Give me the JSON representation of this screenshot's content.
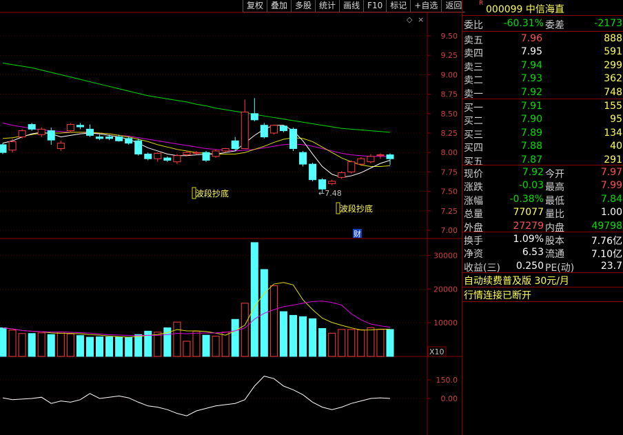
{
  "toolbar": [
    "复权",
    "叠加",
    "多股",
    "统计",
    "画线",
    "F10",
    "标记",
    "+自选",
    "返回"
  ],
  "stock": {
    "badge": "R",
    "code_name": "000099 中信海直"
  },
  "ratio": {
    "label": "委比",
    "value": "-60.31%",
    "diff_label": "委差",
    "diff_value": "-2173"
  },
  "asks": [
    {
      "label": "卖五",
      "price": "7.96",
      "vol": "888"
    },
    {
      "label": "卖四",
      "price": "7.95",
      "vol": "591"
    },
    {
      "label": "卖三",
      "price": "7.94",
      "vol": "299"
    },
    {
      "label": "卖二",
      "price": "7.93",
      "vol": "362"
    },
    {
      "label": "卖一",
      "price": "7.92",
      "vol": "748"
    }
  ],
  "bids": [
    {
      "label": "买一",
      "price": "7.91",
      "vol": "155"
    },
    {
      "label": "买二",
      "price": "7.90",
      "vol": "95"
    },
    {
      "label": "买三",
      "price": "7.89",
      "vol": "134"
    },
    {
      "label": "买四",
      "price": "7.88",
      "vol": "40"
    },
    {
      "label": "买五",
      "price": "7.87",
      "vol": "291"
    }
  ],
  "quote": [
    {
      "l1": "现价",
      "v1": "7.92",
      "l2": "今开",
      "v2": "7.97",
      "c1": "green",
      "c2": "red"
    },
    {
      "l1": "涨跌",
      "v1": "-0.03",
      "l2": "最高",
      "v2": "7.99",
      "c1": "green",
      "c2": "red"
    },
    {
      "l1": "涨幅",
      "v1": "-0.38%",
      "l2": "最低",
      "v2": "7.84",
      "c1": "green",
      "c2": "green"
    },
    {
      "l1": "总量",
      "v1": "77077",
      "l2": "量比",
      "v2": "1.00",
      "c1": "yel",
      "c2": "white"
    },
    {
      "l1": "外盘",
      "v1": "27279",
      "l2": "内盘",
      "v2": "49798",
      "c1": "red",
      "c2": "green"
    }
  ],
  "stats": [
    {
      "l1": "换手",
      "v1": "1.09%",
      "l2": "股本",
      "v2": "7.76亿"
    },
    {
      "l1": "净资",
      "v1": "6.53",
      "l2": "流通",
      "v2": "7.10亿"
    },
    {
      "l1": "收益(三)",
      "v1": "0.250",
      "l2": "PE(动)",
      "v2": "23.7"
    }
  ],
  "promo": "自动续费普及版 30元/月",
  "status": "行情连接已断开",
  "price_axis": [
    "9.50",
    "9.25",
    "9.00",
    "8.75",
    "8.50",
    "8.25",
    "8.00",
    "7.75",
    "7.50",
    "7.25",
    "7.00"
  ],
  "volume_axis": [
    "30000",
    "20000",
    "10000"
  ],
  "volume_unit": "X10",
  "osc_axis": [
    "150.0",
    "0.00"
  ],
  "annotations": {
    "signal1": "波段抄底",
    "signal2": "波段抄底",
    "low_label": "←7.48",
    "fin_badge": "财"
  },
  "chart_data": [
    {
      "type": "candlestick",
      "ylim": [
        7.0,
        9.5
      ],
      "candles": [
        {
          "o": 8.1,
          "c": 8.0,
          "h": 8.12,
          "l": 7.98
        },
        {
          "o": 8.03,
          "c": 8.14,
          "h": 8.18,
          "l": 8.0
        },
        {
          "o": 8.2,
          "c": 8.28,
          "h": 8.3,
          "l": 8.18
        },
        {
          "o": 8.36,
          "c": 8.3,
          "h": 8.38,
          "l": 8.28
        },
        {
          "o": 8.23,
          "c": 8.3,
          "h": 8.32,
          "l": 8.2
        },
        {
          "o": 8.28,
          "c": 8.16,
          "h": 8.32,
          "l": 8.1
        },
        {
          "o": 8.05,
          "c": 8.12,
          "h": 8.15,
          "l": 8.02
        },
        {
          "o": 8.28,
          "c": 8.36,
          "h": 8.38,
          "l": 8.26
        },
        {
          "o": 8.35,
          "c": 8.33,
          "h": 8.38,
          "l": 8.3
        },
        {
          "o": 8.3,
          "c": 8.22,
          "h": 8.36,
          "l": 8.2
        },
        {
          "o": 8.2,
          "c": 8.18,
          "h": 8.23,
          "l": 8.16
        },
        {
          "o": 8.2,
          "c": 8.18,
          "h": 8.23,
          "l": 8.16
        },
        {
          "o": 8.2,
          "c": 8.15,
          "h": 8.23,
          "l": 8.14
        },
        {
          "o": 8.18,
          "c": 8.12,
          "h": 8.2,
          "l": 8.1
        },
        {
          "o": 8.15,
          "c": 7.98,
          "h": 8.18,
          "l": 7.96
        },
        {
          "o": 7.98,
          "c": 7.92,
          "h": 8.0,
          "l": 7.9
        },
        {
          "o": 7.92,
          "c": 7.99,
          "h": 8.0,
          "l": 7.88
        },
        {
          "o": 7.93,
          "c": 7.9,
          "h": 7.95,
          "l": 7.88
        },
        {
          "o": 7.88,
          "c": 7.96,
          "h": 7.98,
          "l": 7.85
        },
        {
          "o": 7.97,
          "c": 8.0,
          "h": 8.02,
          "l": 7.95
        },
        {
          "o": 7.99,
          "c": 8.0,
          "h": 8.02,
          "l": 7.97
        },
        {
          "o": 8.0,
          "c": 7.9,
          "h": 8.02,
          "l": 7.88
        },
        {
          "o": 7.95,
          "c": 8.02,
          "h": 8.04,
          "l": 7.93
        },
        {
          "o": 8.02,
          "c": 8.05,
          "h": 8.06,
          "l": 8.0
        },
        {
          "o": 8.15,
          "c": 8.05,
          "h": 8.2,
          "l": 8.02
        },
        {
          "o": 8.05,
          "c": 8.52,
          "h": 8.68,
          "l": 8.05
        },
        {
          "o": 8.5,
          "c": 8.42,
          "h": 8.7,
          "l": 8.4
        },
        {
          "o": 8.35,
          "c": 8.2,
          "h": 8.38,
          "l": 8.18
        },
        {
          "o": 8.25,
          "c": 8.35,
          "h": 8.36,
          "l": 8.23
        },
        {
          "o": 8.34,
          "c": 8.28,
          "h": 8.35,
          "l": 8.26
        },
        {
          "o": 8.3,
          "c": 8.05,
          "h": 8.32,
          "l": 8.02
        },
        {
          "o": 8.0,
          "c": 7.85,
          "h": 8.02,
          "l": 7.82
        },
        {
          "o": 7.85,
          "c": 7.65,
          "h": 7.87,
          "l": 7.63
        },
        {
          "o": 7.65,
          "c": 7.53,
          "h": 7.67,
          "l": 7.48
        },
        {
          "o": 7.6,
          "c": 7.63,
          "h": 7.65,
          "l": 7.58
        },
        {
          "o": 7.68,
          "c": 7.74,
          "h": 7.76,
          "l": 7.66
        },
        {
          "o": 7.75,
          "c": 7.88,
          "h": 7.9,
          "l": 7.73
        },
        {
          "o": 7.85,
          "c": 7.92,
          "h": 7.94,
          "l": 7.83
        },
        {
          "o": 7.88,
          "c": 7.95,
          "h": 7.98,
          "l": 7.86
        },
        {
          "o": 7.96,
          "c": 7.97,
          "h": 7.99,
          "l": 7.92
        },
        {
          "o": 7.97,
          "c": 7.92,
          "h": 7.99,
          "l": 7.84
        }
      ],
      "ma_white": [
        8.12,
        8.15,
        8.2,
        8.24,
        8.26,
        8.24,
        8.2,
        8.22,
        8.24,
        8.25,
        8.24,
        8.22,
        8.2,
        8.17,
        8.12,
        8.06,
        8.02,
        7.98,
        7.96,
        7.96,
        7.97,
        7.98,
        7.98,
        8.0,
        8.02,
        8.12,
        8.22,
        8.3,
        8.35,
        8.35,
        8.28,
        8.15,
        7.98,
        7.82,
        7.72,
        7.68,
        7.7,
        7.74,
        7.8,
        7.86,
        7.9
      ],
      "ma_yellow": [
        8.18,
        8.19,
        8.21,
        8.23,
        8.25,
        8.25,
        8.25,
        8.26,
        8.26,
        8.26,
        8.25,
        8.24,
        8.22,
        8.2,
        8.17,
        8.14,
        8.1,
        8.07,
        8.04,
        8.02,
        8.0,
        7.99,
        7.98,
        7.98,
        7.98,
        8.0,
        8.04,
        8.08,
        8.13,
        8.17,
        8.19,
        8.18,
        8.14,
        8.07,
        8.0,
        7.93,
        7.88,
        7.84,
        7.82,
        7.82,
        7.83
      ],
      "ma_magenta": [
        8.38,
        8.35,
        8.33,
        8.31,
        8.29,
        8.28,
        8.27,
        8.26,
        8.26,
        8.25,
        8.25,
        8.24,
        8.22,
        8.21,
        8.19,
        8.17,
        8.15,
        8.13,
        8.11,
        8.09,
        8.07,
        8.05,
        8.04,
        8.03,
        8.02,
        8.03,
        8.04,
        8.06,
        8.08,
        8.1,
        8.11,
        8.1,
        8.08,
        8.05,
        8.02,
        7.99,
        7.97,
        7.96,
        7.95,
        7.95,
        7.95
      ],
      "ma_green": [
        9.15,
        9.13,
        9.11,
        9.09,
        9.06,
        9.03,
        9.0,
        8.97,
        8.94,
        8.91,
        8.88,
        8.85,
        8.82,
        8.79,
        8.76,
        8.73,
        8.71,
        8.69,
        8.67,
        8.65,
        8.62,
        8.6,
        8.57,
        8.55,
        8.53,
        8.51,
        8.49,
        8.47,
        8.45,
        8.43,
        8.41,
        8.39,
        8.37,
        8.35,
        8.33,
        8.31,
        8.3,
        8.29,
        8.28,
        8.27,
        8.26
      ]
    },
    {
      "type": "bar",
      "ylim": [
        0,
        35000
      ],
      "values": [
        8500,
        7800,
        6800,
        6800,
        7000,
        6500,
        7200,
        6700,
        6200,
        5700,
        5800,
        5800,
        5800,
        5600,
        6500,
        7500,
        7200,
        8500,
        10200,
        4500,
        7500,
        6300,
        6000,
        7200,
        11000,
        15800,
        33800,
        25800,
        21000,
        13300,
        12200,
        11800,
        11200,
        8300,
        6900,
        8000,
        8000,
        7900,
        8500,
        8000,
        8000
      ],
      "ylabel": "X10"
    },
    {
      "type": "line",
      "values": [
        5,
        -10,
        -5,
        0,
        10,
        -40,
        -20,
        -30,
        -10,
        40,
        0,
        10,
        20,
        5,
        -30,
        -60,
        -70,
        -90,
        -120,
        -140,
        -100,
        -80,
        -60,
        -50,
        -40,
        -10,
        100,
        180,
        160,
        100,
        70,
        30,
        -30,
        -70,
        -90,
        -70,
        -40,
        -20,
        0,
        5,
        0
      ]
    }
  ]
}
